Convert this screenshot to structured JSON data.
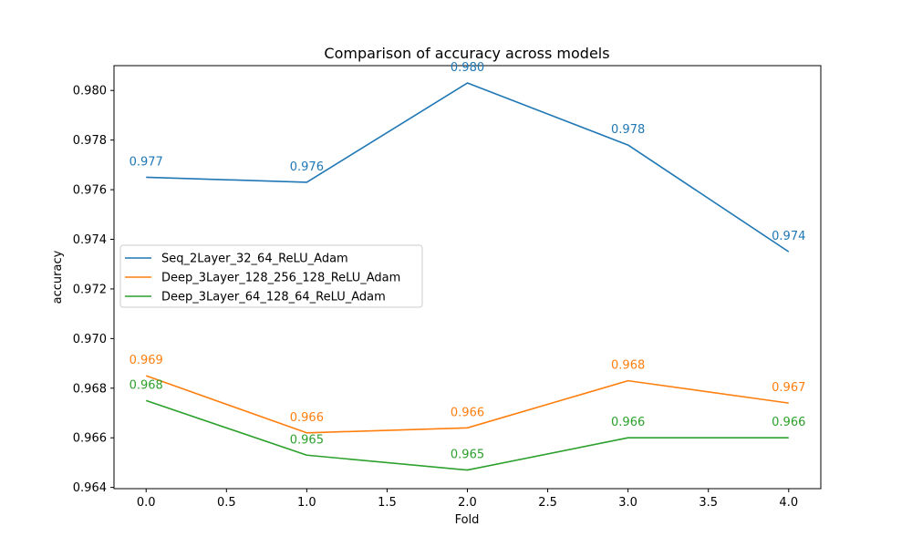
{
  "chart_data": {
    "type": "line",
    "title": "Comparison of accuracy across models",
    "xlabel": "Fold",
    "ylabel": "accuracy",
    "x": [
      0,
      1,
      2,
      3,
      4
    ],
    "xlim": [
      -0.2,
      4.2
    ],
    "ylim": [
      0.96395,
      0.981
    ],
    "xticks": [
      "0.0",
      "0.5",
      "1.0",
      "1.5",
      "2.0",
      "2.5",
      "3.0",
      "3.5",
      "4.0"
    ],
    "xtick_values": [
      0,
      0.5,
      1,
      1.5,
      2,
      2.5,
      3,
      3.5,
      4
    ],
    "yticks": [
      "0.964",
      "0.966",
      "0.968",
      "0.970",
      "0.972",
      "0.974",
      "0.976",
      "0.978",
      "0.980"
    ],
    "ytick_values": [
      0.964,
      0.966,
      0.968,
      0.97,
      0.972,
      0.974,
      0.976,
      0.978,
      0.98
    ],
    "grid": false,
    "legend_position": "center-left",
    "series": [
      {
        "name": "Seq_2Layer_32_64_ReLU_Adam",
        "color": "#1f77b4",
        "values": [
          0.9765,
          0.9763,
          0.9803,
          0.9778,
          0.9735
        ],
        "labels": [
          "0.977",
          "0.976",
          "0.980",
          "0.978",
          "0.974"
        ]
      },
      {
        "name": "Deep_3Layer_128_256_128_ReLU_Adam",
        "color": "#ff7f0e",
        "values": [
          0.9685,
          0.9662,
          0.9664,
          0.9683,
          0.9674
        ],
        "labels": [
          "0.969",
          "0.966",
          "0.966",
          "0.968",
          "0.967"
        ]
      },
      {
        "name": "Deep_3Layer_64_128_64_ReLU_Adam",
        "color": "#2ca02c",
        "values": [
          0.9675,
          0.9653,
          0.9647,
          0.966,
          0.966
        ],
        "labels": [
          "0.968",
          "0.965",
          "0.965",
          "0.966",
          "0.966"
        ]
      }
    ]
  }
}
